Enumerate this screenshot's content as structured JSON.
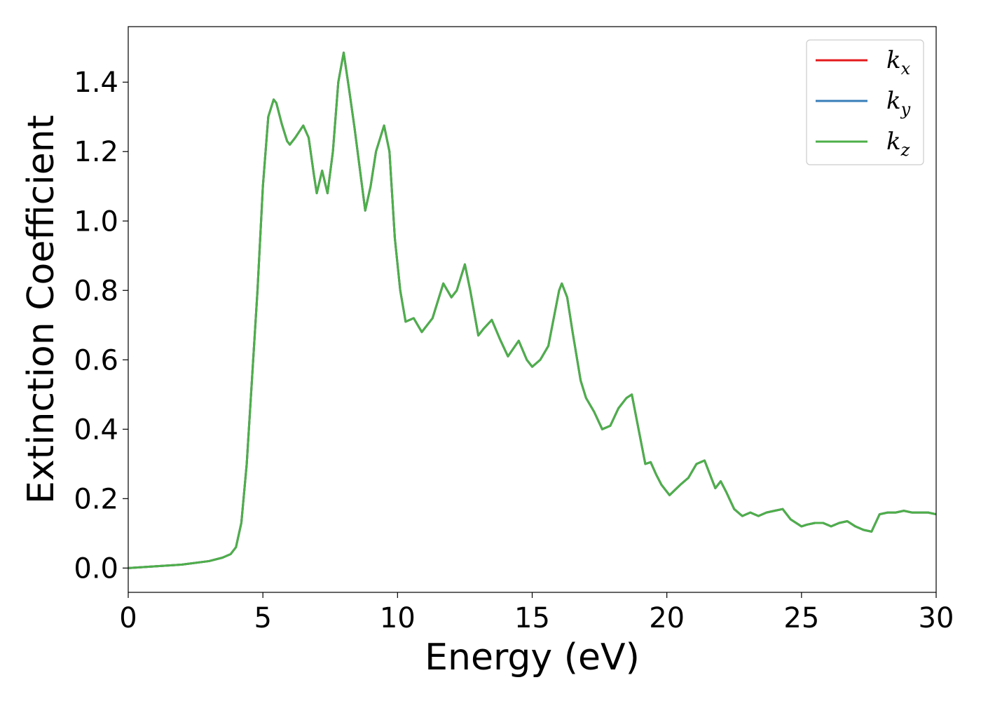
{
  "chart_data": {
    "type": "line",
    "title": "",
    "xlabel": "Energy (eV)",
    "ylabel": "Extinction Coefficient",
    "xlim": [
      0,
      30
    ],
    "ylim": [
      -0.07,
      1.56
    ],
    "xticks": [
      0,
      5,
      10,
      15,
      20,
      25,
      30
    ],
    "yticks": [
      0.0,
      0.2,
      0.4,
      0.6,
      0.8,
      1.0,
      1.2,
      1.4
    ],
    "xtick_labels": [
      "0",
      "5",
      "10",
      "15",
      "20",
      "25",
      "30"
    ],
    "ytick_labels": [
      "0.0",
      "0.2",
      "0.4",
      "0.6",
      "0.8",
      "1.0",
      "1.2",
      "1.4"
    ],
    "grid": false,
    "legend_position": "top-right",
    "x": [
      0,
      1,
      2,
      3,
      3.5,
      3.8,
      4.0,
      4.2,
      4.4,
      4.6,
      4.8,
      5.0,
      5.2,
      5.4,
      5.5,
      5.7,
      5.9,
      6.0,
      6.2,
      6.5,
      6.7,
      6.9,
      7.0,
      7.2,
      7.4,
      7.6,
      7.8,
      8.0,
      8.2,
      8.4,
      8.6,
      8.8,
      9.0,
      9.2,
      9.5,
      9.7,
      9.9,
      10.1,
      10.3,
      10.6,
      10.9,
      11.3,
      11.7,
      12.0,
      12.2,
      12.5,
      12.7,
      13.0,
      13.2,
      13.5,
      13.8,
      14.1,
      14.5,
      14.8,
      15.0,
      15.3,
      15.6,
      16.0,
      16.1,
      16.3,
      16.5,
      16.8,
      17.0,
      17.3,
      17.6,
      17.9,
      18.2,
      18.5,
      18.7,
      19.0,
      19.2,
      19.4,
      19.6,
      19.8,
      20.1,
      20.5,
      20.8,
      21.1,
      21.4,
      21.6,
      21.8,
      22.0,
      22.2,
      22.5,
      22.8,
      23.1,
      23.4,
      23.7,
      24.0,
      24.3,
      24.6,
      25.0,
      25.2,
      25.5,
      25.8,
      26.1,
      26.4,
      26.7,
      27.0,
      27.3,
      27.6,
      27.9,
      28.2,
      28.5,
      28.8,
      29.1,
      29.4,
      29.7,
      30.0
    ],
    "series": [
      {
        "name": "k",
        "subscript": "x",
        "color": "#e41a1c",
        "values": [
          0.0,
          0.005,
          0.01,
          0.02,
          0.03,
          0.04,
          0.06,
          0.13,
          0.3,
          0.55,
          0.8,
          1.1,
          1.3,
          1.35,
          1.34,
          1.28,
          1.23,
          1.22,
          1.24,
          1.275,
          1.24,
          1.13,
          1.08,
          1.145,
          1.08,
          1.2,
          1.4,
          1.485,
          1.38,
          1.27,
          1.15,
          1.03,
          1.1,
          1.2,
          1.275,
          1.2,
          0.95,
          0.8,
          0.71,
          0.72,
          0.68,
          0.72,
          0.82,
          0.78,
          0.8,
          0.875,
          0.8,
          0.67,
          0.69,
          0.715,
          0.66,
          0.61,
          0.655,
          0.6,
          0.58,
          0.6,
          0.64,
          0.8,
          0.82,
          0.78,
          0.68,
          0.54,
          0.49,
          0.45,
          0.4,
          0.41,
          0.46,
          0.49,
          0.5,
          0.38,
          0.3,
          0.305,
          0.27,
          0.24,
          0.21,
          0.24,
          0.26,
          0.3,
          0.31,
          0.27,
          0.23,
          0.25,
          0.22,
          0.17,
          0.15,
          0.16,
          0.15,
          0.16,
          0.165,
          0.17,
          0.14,
          0.12,
          0.125,
          0.13,
          0.13,
          0.12,
          0.13,
          0.135,
          0.12,
          0.11,
          0.105,
          0.155,
          0.16,
          0.16,
          0.165,
          0.16,
          0.16,
          0.16,
          0.155
        ]
      },
      {
        "name": "k",
        "subscript": "y",
        "color": "#377eb8",
        "values": [
          0.0,
          0.005,
          0.01,
          0.02,
          0.03,
          0.04,
          0.06,
          0.13,
          0.3,
          0.55,
          0.8,
          1.1,
          1.3,
          1.35,
          1.34,
          1.28,
          1.23,
          1.22,
          1.24,
          1.275,
          1.24,
          1.13,
          1.08,
          1.145,
          1.08,
          1.2,
          1.4,
          1.485,
          1.38,
          1.27,
          1.15,
          1.03,
          1.1,
          1.2,
          1.275,
          1.2,
          0.95,
          0.8,
          0.71,
          0.72,
          0.68,
          0.72,
          0.82,
          0.78,
          0.8,
          0.875,
          0.8,
          0.67,
          0.69,
          0.715,
          0.66,
          0.61,
          0.655,
          0.6,
          0.58,
          0.6,
          0.64,
          0.8,
          0.82,
          0.78,
          0.68,
          0.54,
          0.49,
          0.45,
          0.4,
          0.41,
          0.46,
          0.49,
          0.5,
          0.38,
          0.3,
          0.305,
          0.27,
          0.24,
          0.21,
          0.24,
          0.26,
          0.3,
          0.31,
          0.27,
          0.23,
          0.25,
          0.22,
          0.17,
          0.15,
          0.16,
          0.15,
          0.16,
          0.165,
          0.17,
          0.14,
          0.12,
          0.125,
          0.13,
          0.13,
          0.12,
          0.13,
          0.135,
          0.12,
          0.11,
          0.105,
          0.155,
          0.16,
          0.16,
          0.165,
          0.16,
          0.16,
          0.16,
          0.155
        ]
      },
      {
        "name": "k",
        "subscript": "z",
        "color": "#4daf4a",
        "values": [
          0.0,
          0.005,
          0.01,
          0.02,
          0.03,
          0.04,
          0.06,
          0.13,
          0.3,
          0.55,
          0.8,
          1.1,
          1.3,
          1.35,
          1.34,
          1.28,
          1.23,
          1.22,
          1.24,
          1.275,
          1.24,
          1.13,
          1.08,
          1.145,
          1.08,
          1.2,
          1.4,
          1.485,
          1.38,
          1.27,
          1.15,
          1.03,
          1.1,
          1.2,
          1.275,
          1.2,
          0.95,
          0.8,
          0.71,
          0.72,
          0.68,
          0.72,
          0.82,
          0.78,
          0.8,
          0.875,
          0.8,
          0.67,
          0.69,
          0.715,
          0.66,
          0.61,
          0.655,
          0.6,
          0.58,
          0.6,
          0.64,
          0.8,
          0.82,
          0.78,
          0.68,
          0.54,
          0.49,
          0.45,
          0.4,
          0.41,
          0.46,
          0.49,
          0.5,
          0.38,
          0.3,
          0.305,
          0.27,
          0.24,
          0.21,
          0.24,
          0.26,
          0.3,
          0.31,
          0.27,
          0.23,
          0.25,
          0.22,
          0.17,
          0.15,
          0.16,
          0.15,
          0.16,
          0.165,
          0.17,
          0.14,
          0.12,
          0.125,
          0.13,
          0.13,
          0.12,
          0.13,
          0.135,
          0.12,
          0.11,
          0.105,
          0.155,
          0.16,
          0.16,
          0.165,
          0.16,
          0.16,
          0.16,
          0.155
        ]
      }
    ]
  }
}
